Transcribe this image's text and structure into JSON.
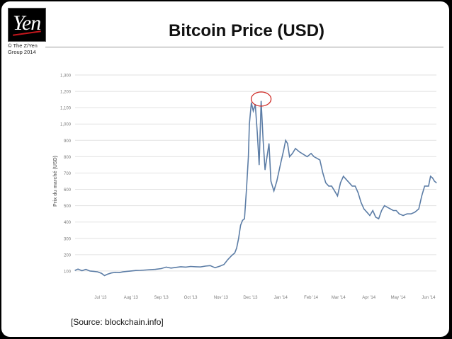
{
  "header": {
    "logo_text": "Yen",
    "copyright": "© The Z/Yen\nGroup 2014",
    "title": "Bitcoin Price (USD)",
    "source": "[Source: blockchain.info]"
  },
  "colors": {
    "line": "#5c7da6",
    "grid": "#e2e2e2",
    "highlight_circle": "#d0302b",
    "tick_text": "#7a7a7a"
  },
  "chart_data": {
    "type": "line",
    "title": "",
    "xlabel": "",
    "ylabel": "Prix du marché (USD)",
    "ylim": [
      0,
      1300
    ],
    "yticks": [
      100,
      200,
      300,
      400,
      500,
      600,
      700,
      800,
      900,
      "1,000",
      "1,100",
      "1,200",
      "1,300"
    ],
    "xticks": [
      "Jul '13",
      "Aug '13",
      "Sep '13",
      "Oct '13",
      "Nov '13",
      "Dec '13",
      "Jan '14",
      "Feb '14",
      "Mar '14",
      "Apr '14",
      "May '14",
      "Jun '14"
    ],
    "xtick_dates": [
      "2013-07-01",
      "2013-08-01",
      "2013-09-01",
      "2013-10-01",
      "2013-11-01",
      "2013-12-01",
      "2014-01-01",
      "2014-02-01",
      "2014-03-01",
      "2014-04-01",
      "2014-05-01",
      "2014-06-01"
    ],
    "grid": true,
    "legend": "none",
    "annotation": "circle around peak",
    "series": [
      {
        "x": [
          "2013-06-05",
          "2013-06-08",
          "2013-06-12",
          "2013-06-16",
          "2013-06-20",
          "2013-06-24",
          "2013-06-28",
          "2013-07-02",
          "2013-07-05",
          "2013-07-08",
          "2013-07-12",
          "2013-07-16",
          "2013-07-20",
          "2013-07-24",
          "2013-07-28",
          "2013-08-01",
          "2013-08-06",
          "2013-08-11",
          "2013-08-16",
          "2013-08-21",
          "2013-08-26",
          "2013-09-01",
          "2013-09-06",
          "2013-09-11",
          "2013-09-16",
          "2013-09-21",
          "2013-09-26",
          "2013-10-01",
          "2013-10-06",
          "2013-10-11",
          "2013-10-16",
          "2013-10-21",
          "2013-10-26",
          "2013-10-31",
          "2013-11-04",
          "2013-11-08",
          "2013-11-12",
          "2013-11-15",
          "2013-11-17",
          "2013-11-19",
          "2013-11-21",
          "2013-11-23",
          "2013-11-25",
          "2013-11-27",
          "2013-11-29",
          "2013-11-30",
          "2013-12-02",
          "2013-12-04",
          "2013-12-06",
          "2013-12-08",
          "2013-12-10",
          "2013-12-12",
          "2013-12-14",
          "2013-12-16",
          "2013-12-18",
          "2013-12-20",
          "2013-12-22",
          "2013-12-25",
          "2013-12-28",
          "2014-01-01",
          "2014-01-04",
          "2014-01-06",
          "2014-01-08",
          "2014-01-10",
          "2014-01-13",
          "2014-01-16",
          "2014-01-20",
          "2014-01-24",
          "2014-01-28",
          "2014-02-01",
          "2014-02-04",
          "2014-02-07",
          "2014-02-10",
          "2014-02-13",
          "2014-02-16",
          "2014-02-19",
          "2014-02-22",
          "2014-02-25",
          "2014-02-28",
          "2014-03-03",
          "2014-03-06",
          "2014-03-09",
          "2014-03-12",
          "2014-03-15",
          "2014-03-18",
          "2014-03-21",
          "2014-03-24",
          "2014-03-27",
          "2014-03-30",
          "2014-04-02",
          "2014-04-05",
          "2014-04-08",
          "2014-04-11",
          "2014-04-14",
          "2014-04-17",
          "2014-04-20",
          "2014-04-23",
          "2014-04-26",
          "2014-04-29",
          "2014-05-02",
          "2014-05-06",
          "2014-05-10",
          "2014-05-14",
          "2014-05-18",
          "2014-05-22",
          "2014-05-25",
          "2014-05-28",
          "2014-06-01",
          "2014-06-03",
          "2014-06-05",
          "2014-06-07",
          "2014-06-09"
        ],
        "y": [
          104,
          112,
          102,
          110,
          100,
          98,
          95,
          86,
          72,
          80,
          88,
          92,
          90,
          95,
          98,
          100,
          103,
          104,
          106,
          108,
          110,
          115,
          124,
          118,
          122,
          126,
          124,
          128,
          126,
          125,
          130,
          133,
          120,
          130,
          140,
          170,
          195,
          210,
          240,
          300,
          380,
          410,
          420,
          600,
          800,
          1000,
          1130,
          1080,
          1120,
          950,
          750,
          1140,
          900,
          720,
          800,
          880,
          650,
          590,
          650,
          760,
          840,
          900,
          880,
          800,
          820,
          850,
          830,
          815,
          800,
          820,
          800,
          790,
          780,
          700,
          640,
          620,
          620,
          590,
          560,
          640,
          680,
          660,
          640,
          620,
          620,
          580,
          520,
          480,
          460,
          440,
          470,
          430,
          420,
          470,
          500,
          490,
          480,
          470,
          470,
          450,
          440,
          450,
          450,
          460,
          480,
          560,
          620,
          620,
          680,
          670,
          650,
          640
        ]
      }
    ]
  }
}
